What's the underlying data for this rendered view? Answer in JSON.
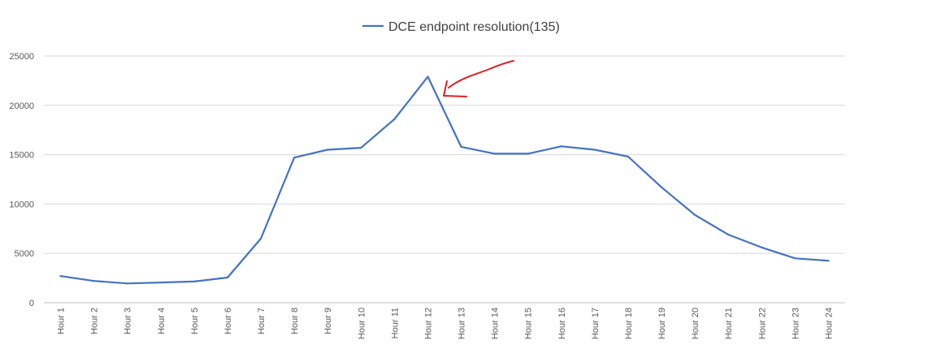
{
  "chart_data": {
    "type": "line",
    "legend_position": "top-center",
    "grid": true,
    "categories": [
      "Hour 1",
      "Hour 2",
      "Hour 3",
      "Hour 4",
      "Hour 5",
      "Hour 6",
      "Hour 7",
      "Hour 8",
      "Hour 9",
      "Hour 10",
      "Hour 11",
      "Hour 12",
      "Hour 13",
      "Hour 14",
      "Hour 15",
      "Hour 16",
      "Hour 17",
      "Hour 18",
      "Hour 19",
      "Hour 20",
      "Hour 21",
      "Hour 22",
      "Hour 23",
      "Hour 24"
    ],
    "series": [
      {
        "name": "DCE endpoint resolution(135)",
        "color": "#4472C4",
        "values": [
          2700,
          2200,
          1950,
          2050,
          2150,
          2550,
          6500,
          14700,
          15500,
          15700,
          18600,
          22900,
          15800,
          15100,
          15100,
          15850,
          15500,
          14800,
          11700,
          8900,
          6900,
          5600,
          4500,
          4250
        ]
      }
    ],
    "yticks": [
      "0",
      "5000",
      "10000",
      "15000",
      "20000",
      "25000"
    ],
    "ylim": [
      0,
      25000
    ],
    "annotation": {
      "type": "hand-drawn arrow",
      "color": "#E02020",
      "points_to": "Hour 12"
    }
  }
}
